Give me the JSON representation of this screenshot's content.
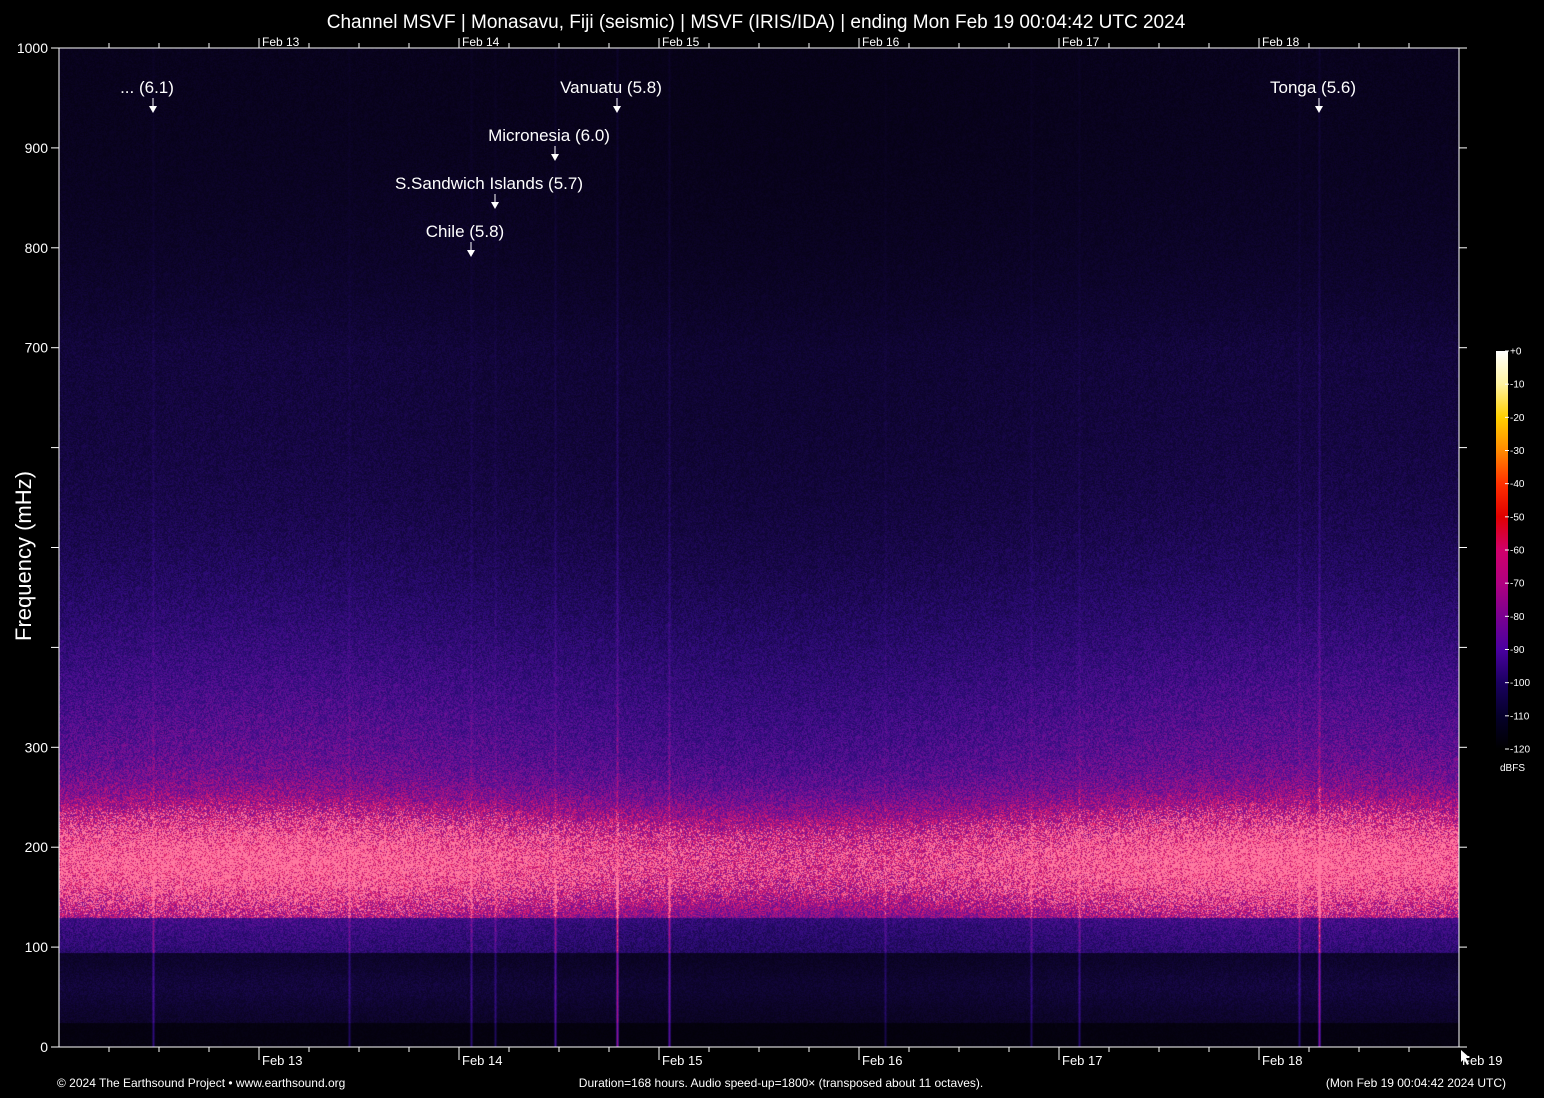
{
  "chart_data": {
    "type": "heatmap",
    "title": "Channel MSVF | Monasavu, Fiji (seismic) | MSVF (IRIS/IDA) | ending Mon Feb 19 00:04:42 UTC 2024",
    "ylabel": "Frequency (mHz)",
    "ylim": [
      0,
      1000
    ],
    "y_tick_labels": [
      {
        "value": 0,
        "label": "0"
      },
      {
        "value": 100,
        "label": "100"
      },
      {
        "value": 200,
        "label": "200"
      },
      {
        "value": 300,
        "label": "300"
      },
      {
        "value": 400,
        "label": ""
      },
      {
        "value": 500,
        "label": ""
      },
      {
        "value": 600,
        "label": ""
      },
      {
        "value": 700,
        "label": "700"
      },
      {
        "value": 800,
        "label": "800"
      },
      {
        "value": 900,
        "label": "900"
      },
      {
        "value": 1000,
        "label": "1000"
      }
    ],
    "x_range_days": [
      0,
      7
    ],
    "x_day_labels": [
      {
        "day": 1,
        "label": "Feb 13"
      },
      {
        "day": 2,
        "label": "Feb 14"
      },
      {
        "day": 3,
        "label": "Feb 15"
      },
      {
        "day": 4,
        "label": "Feb 16"
      },
      {
        "day": 5,
        "label": "Feb 17"
      },
      {
        "day": 6,
        "label": "Feb 18"
      },
      {
        "day": 7,
        "label": "Feb 19"
      }
    ],
    "events": [
      {
        "label": "... (6.1)",
        "day": 0.47
      },
      {
        "label": "Vanuatu (5.8)",
        "day": 2.79
      },
      {
        "label": "Micronesia (6.0)",
        "day": 2.48
      },
      {
        "label": "S.Sandwich Islands (5.7)",
        "day": 2.18
      },
      {
        "label": "Chile (5.8)",
        "day": 2.06
      },
      {
        "label": "Tonga (5.6)",
        "day": 6.3
      }
    ],
    "colorbar": {
      "unit": "dBFS",
      "ticks": [
        "+0",
        "-10",
        "-20",
        "-30",
        "-40",
        "-50",
        "-60",
        "-70",
        "-80",
        "-90",
        "-100",
        "-110",
        "-120"
      ],
      "colors": [
        "#ffffff",
        "#fff3a0",
        "#ffd000",
        "#ff8a00",
        "#ff3000",
        "#e00000",
        "#d0006a",
        "#b00080",
        "#7a0090",
        "#4a00a0",
        "#1a0060",
        "#05002a",
        "#000000"
      ]
    }
  },
  "footer": {
    "left": "© 2024 The Earthsound Project • www.earthsound.org",
    "center": "Duration=168 hours. Audio speed-up=1800× (transposed about 11 octaves).",
    "right": "(Mon Feb 19 00:04:42 2024 UTC)"
  }
}
